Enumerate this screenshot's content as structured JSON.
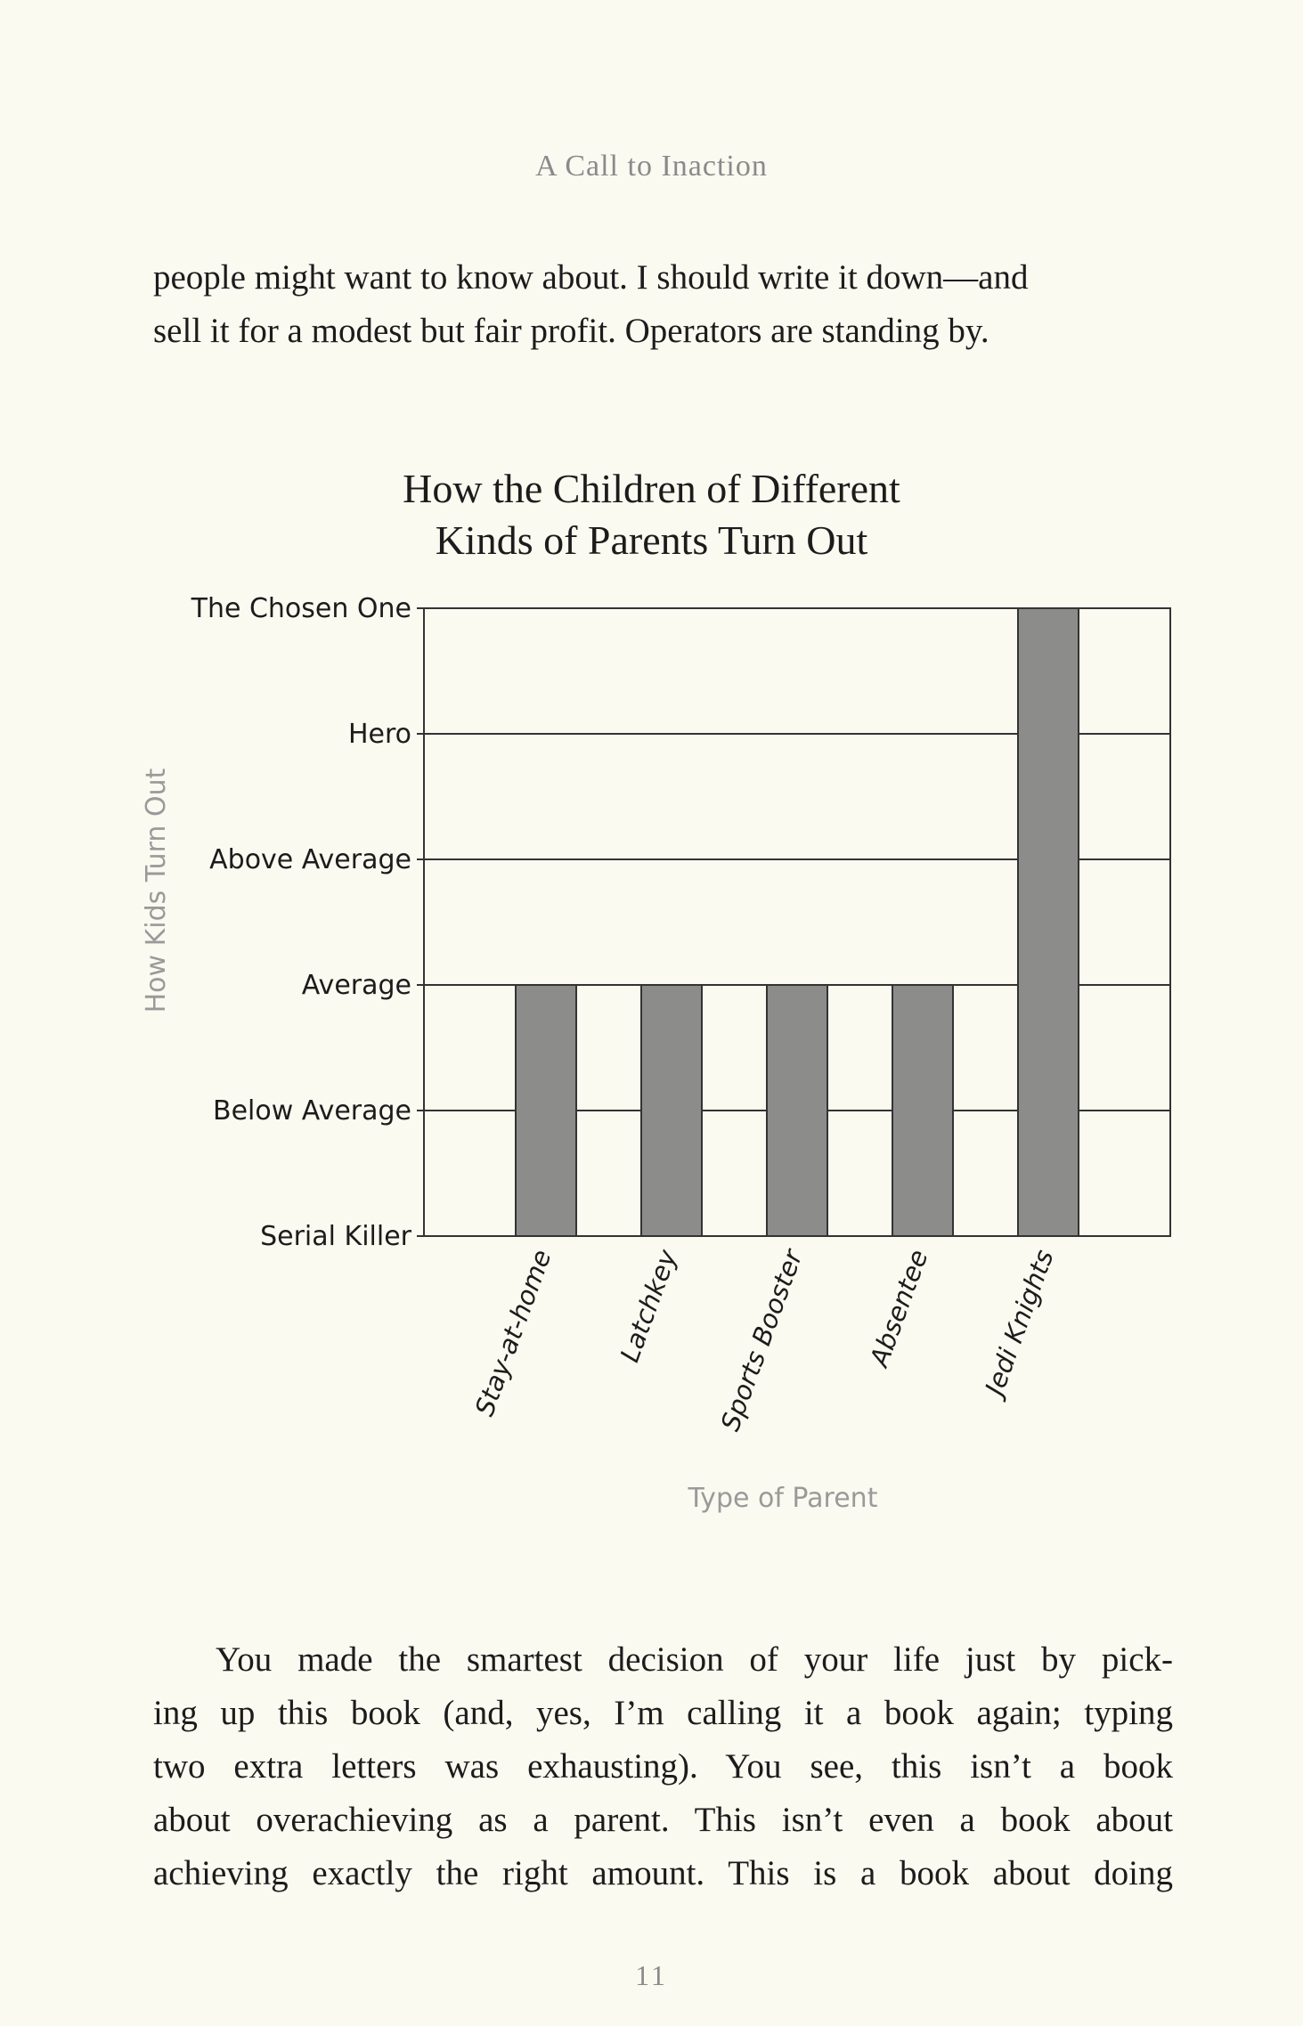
{
  "page": {
    "running_head": "A Call to Inaction",
    "folio": "11",
    "top_paragraph": [
      "people might want to know about. I should write it down—and",
      "sell it for a modest but fair profit. Operators are standing by."
    ],
    "bottom_paragraph": [
      "You made the smartest decision of your life just by pick-",
      "ing up this book (and, yes, I’m calling it a book again; typing",
      "two extra letters was exhausting). You see, this isn’t a book",
      "about overachieving as a parent. This isn’t even a book about",
      "achieving exactly the right amount. This is a book about doing"
    ]
  },
  "chart_data": {
    "type": "bar",
    "title": [
      "How the Children of Different",
      "Kinds of Parents Turn Out"
    ],
    "xlabel": "Type of Parent",
    "ylabel": "How Kids Turn Out",
    "y_levels": [
      "Serial Killer",
      "Below Average",
      "Average",
      "Above Average",
      "Hero",
      "The Chosen One"
    ],
    "categories": [
      "Stay-at-home",
      "Latchkey",
      "Sports Booster",
      "Absentee",
      "Jedi Knights"
    ],
    "values": [
      "Average",
      "Average",
      "Average",
      "Average",
      "The Chosen One"
    ],
    "grid": true,
    "colors": {
      "bar": "#8c8c8a",
      "grid": "#333333",
      "axis_title": "#9a9a9a"
    }
  }
}
